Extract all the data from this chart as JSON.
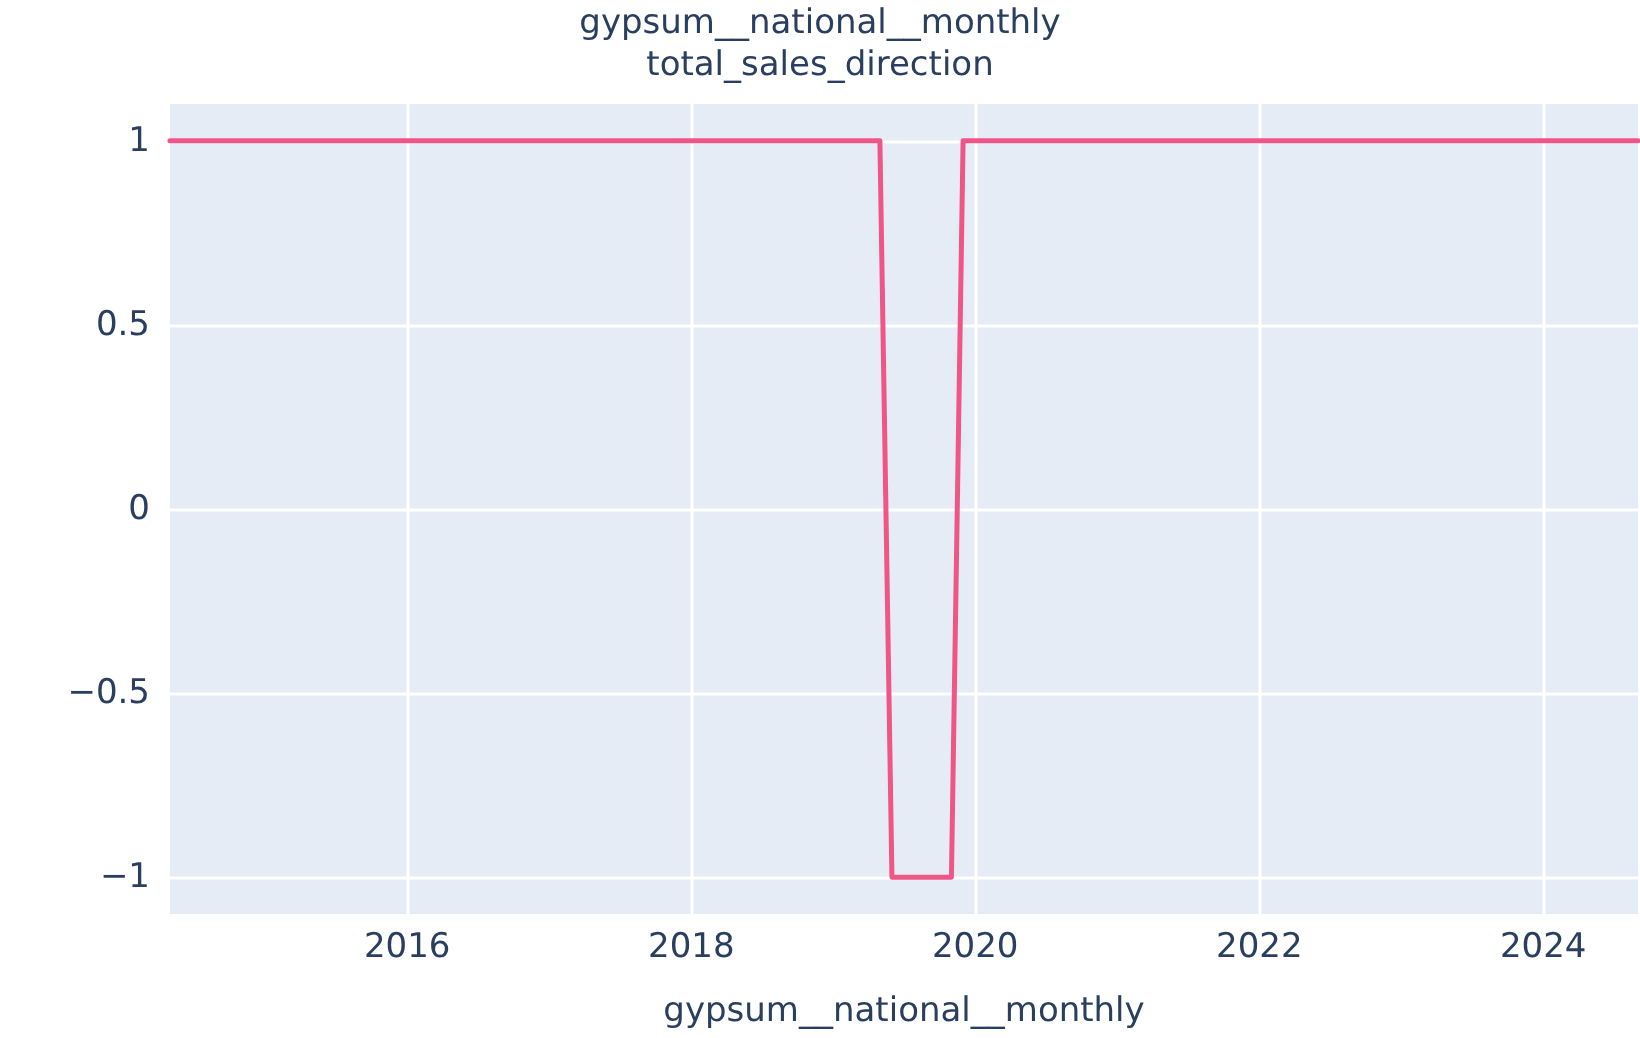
{
  "chart_data": {
    "type": "line",
    "title": "gypsum__national__monthly",
    "subtitle": "total_sales_direction",
    "xlabel": "gypsum__national__monthly",
    "x": [
      "2014-05",
      "2019-05",
      "2019-06",
      "2019-11",
      "2019-12",
      "2024-09"
    ],
    "series": [
      {
        "color": "#ef5587",
        "values": [
          1,
          1,
          -1,
          -1,
          1,
          1
        ]
      }
    ],
    "xlim": [
      "2014-05",
      "2024-09"
    ],
    "xticks": [
      "2016",
      "2018",
      "2020",
      "2022",
      "2024"
    ],
    "ylim": [
      -1.1,
      1.1
    ],
    "yticks": [
      {
        "value": -1,
        "label": "−1"
      },
      {
        "value": -0.5,
        "label": "−0.5"
      },
      0,
      0.5,
      1
    ],
    "grid": true,
    "marker": "none",
    "line_style": "solid"
  }
}
